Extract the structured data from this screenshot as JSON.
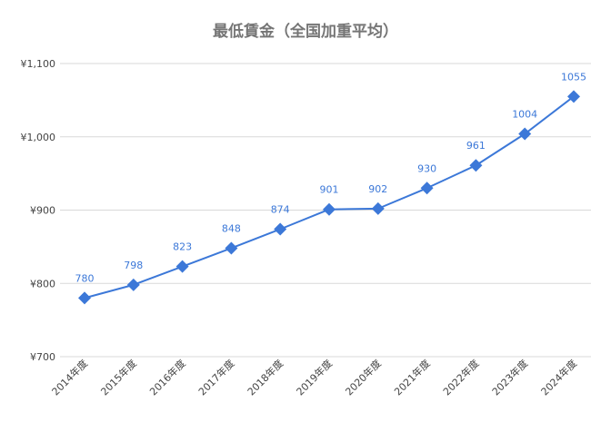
{
  "chart_data": {
    "type": "line",
    "title": "最低賃金（全国加重平均）",
    "xlabel": "",
    "ylabel": "",
    "categories": [
      "2014年度",
      "2015年度",
      "2016年度",
      "2017年度",
      "2018年度",
      "2019年度",
      "2020年度",
      "2021年度",
      "2022年度",
      "2023年度",
      "2024年度"
    ],
    "series": [
      {
        "values": [
          780,
          798,
          823,
          848,
          874,
          901,
          902,
          930,
          961,
          1004,
          1055
        ],
        "color": "#3c78d8",
        "marker": "diamond"
      }
    ],
    "data_labels": [
      "780",
      "798",
      "823",
      "848",
      "874",
      "901",
      "902",
      "930",
      "961",
      "1004",
      "1055"
    ],
    "ylim": [
      700,
      1100
    ],
    "y_ticks": [
      700,
      800,
      900,
      1000,
      1100
    ],
    "y_tick_labels": [
      "¥700",
      "¥800",
      "¥900",
      "¥1,000",
      "¥1,100"
    ],
    "grid": true,
    "legend": "none"
  }
}
